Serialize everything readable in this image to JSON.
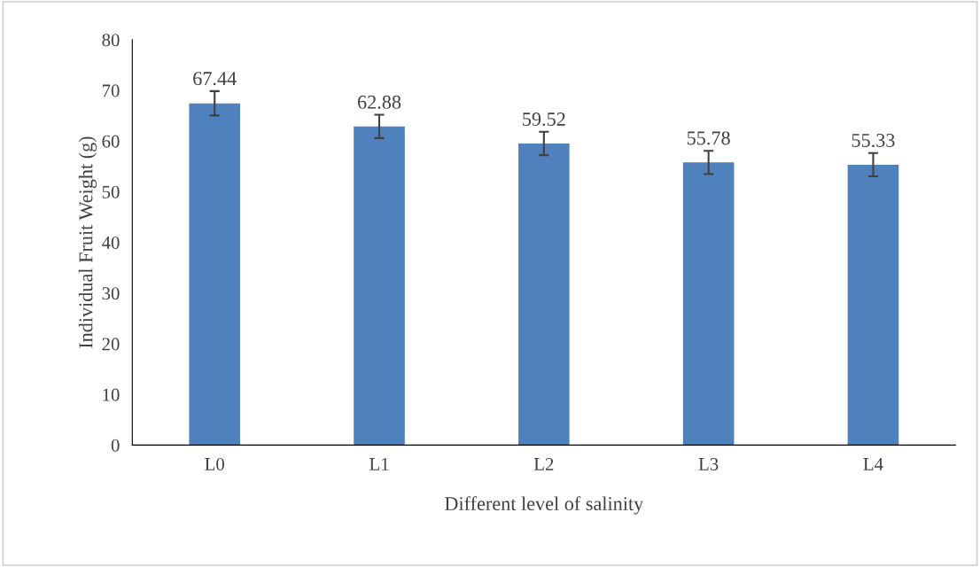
{
  "chart_data": {
    "type": "bar",
    "xlabel": "Different level of salinity",
    "ylabel": "Individual Fruit Weight (g)",
    "categories": [
      "L0",
      "L1",
      "L2",
      "L3",
      "L4"
    ],
    "values": [
      67.44,
      62.88,
      59.52,
      55.78,
      55.33
    ],
    "errors": [
      2.4,
      2.3,
      2.3,
      2.3,
      2.3
    ],
    "color": "#4f81bd",
    "data_labels": true,
    "ylim": [
      0,
      80
    ],
    "yticks": [
      0,
      10,
      20,
      30,
      40,
      50,
      60,
      70,
      80
    ],
    "grid": false,
    "legend": false
  }
}
